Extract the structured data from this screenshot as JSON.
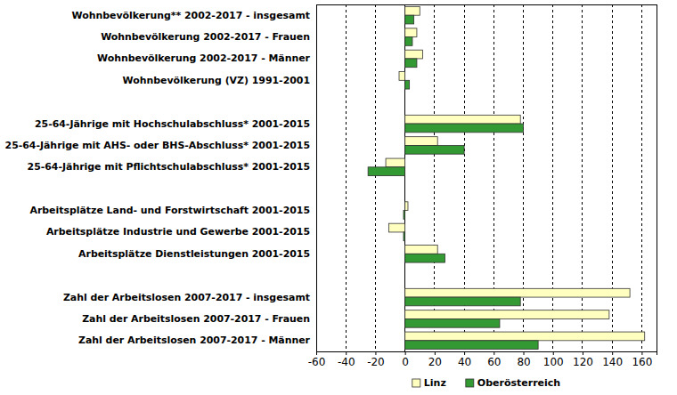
{
  "chart_data": {
    "type": "bar",
    "orientation": "horizontal",
    "grid": true,
    "legend": "bottom",
    "categories": [
      "Wohnbevölkerung** 2002-2017 - insgesamt",
      "Wohnbevölkerung 2002-2017 - Frauen",
      "Wohnbevölkerung 2002-2017 - Männer",
      "Wohnbevölkerung (VZ) 1991-2001",
      null,
      "25-64-Jährige mit Hochschulabschluss* 2001-2015",
      "25-64-Jährige mit AHS- oder BHS-Abschluss* 2001-2015",
      "25-64-Jährige mit Pflichtschulabschluss* 2001-2015",
      null,
      "Arbeitsplätze Land- und Forstwirtschaft 2001-2015",
      "Arbeitsplätze Industrie und Gewerbe 2001-2015",
      "Arbeitsplätze Dienstleistungen 2001-2015",
      null,
      "Zahl der Arbeitslosen 2007-2017 - insgesamt",
      "Zahl der Arbeitslosen 2007-2017 - Frauen",
      "Zahl der Arbeitslosen 2007-2017 - Männer"
    ],
    "series": [
      {
        "name": "Linz",
        "color": "#ffffc0",
        "values": [
          10,
          8,
          12,
          -4,
          null,
          78,
          22,
          -13,
          null,
          2,
          -11,
          22,
          null,
          152,
          138,
          162
        ]
      },
      {
        "name": "Oberösterreich",
        "color": "#339933",
        "values": [
          6,
          5,
          8,
          3,
          null,
          80,
          40,
          -25,
          null,
          -1,
          -1,
          27,
          null,
          78,
          64,
          90
        ]
      }
    ],
    "xlim": [
      -60,
      170
    ],
    "xticks": [
      -60,
      -40,
      -20,
      0,
      20,
      40,
      60,
      80,
      100,
      120,
      140,
      160
    ]
  }
}
